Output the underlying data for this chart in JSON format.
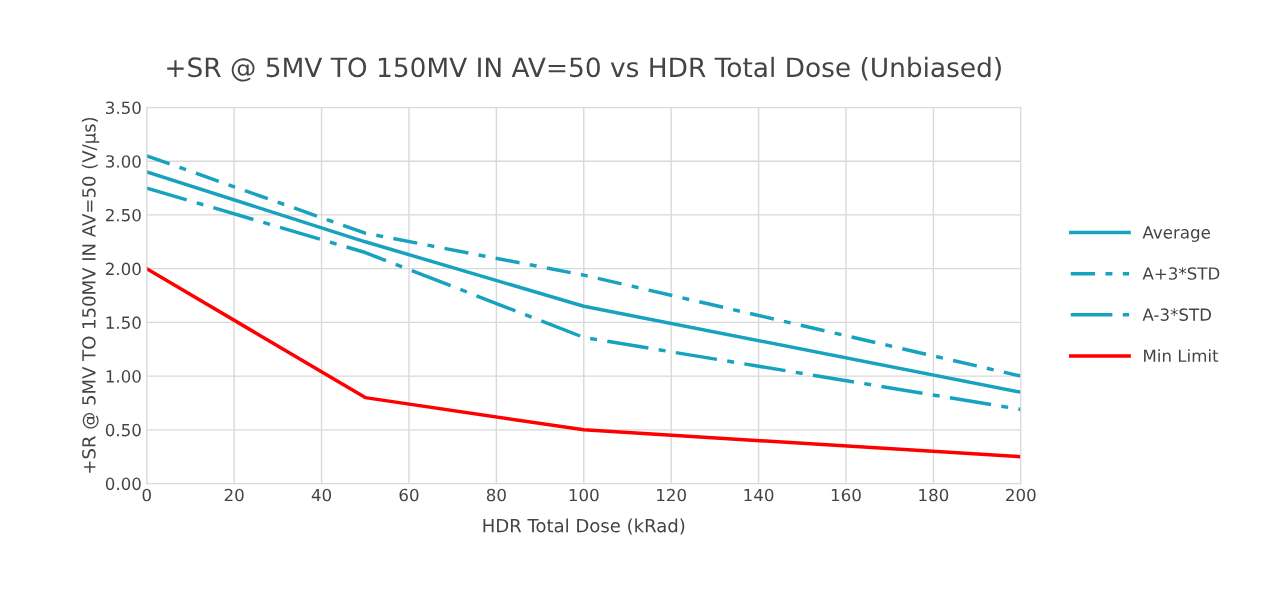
{
  "chart_data": {
    "type": "line",
    "title": "+SR @ 5MV TO 150MV IN AV=50 vs HDR Total Dose (Unbiased)",
    "xlabel": "HDR Total Dose (kRad)",
    "ylabel": "+SR @ 5MV TO 150MV IN AV=50 (V/µs)",
    "x": [
      0,
      50,
      100,
      200
    ],
    "series": [
      {
        "name": "Average",
        "color": "#17a2c0",
        "values": [
          2.9,
          2.25,
          1.65,
          0.85
        ],
        "line_style": "solid"
      },
      {
        "name": "A+3*STD",
        "color": "#17a2c0",
        "values": [
          3.05,
          2.33,
          1.94,
          1.0
        ],
        "line_style": "dashdot"
      },
      {
        "name": "A-3*STD",
        "color": "#17a2c0",
        "values": [
          2.75,
          2.15,
          1.36,
          0.69
        ],
        "line_style": "longdashdot"
      },
      {
        "name": "Min Limit",
        "color": "#ff0000",
        "values": [
          2.0,
          0.8,
          0.5,
          0.25
        ],
        "line_style": "solid"
      }
    ],
    "xlim": [
      0,
      200
    ],
    "xticks": [
      0,
      20,
      40,
      60,
      80,
      100,
      120,
      140,
      160,
      180,
      200
    ],
    "ylim": [
      0,
      3.5
    ],
    "yticks": [
      {
        "value": 0,
        "label": "0.00"
      },
      {
        "value": 0.5,
        "label": "0.50"
      },
      {
        "value": 1,
        "label": "1.00"
      },
      {
        "value": 1.5,
        "label": "1.50"
      },
      {
        "value": 2,
        "label": "2.00"
      },
      {
        "value": 2.5,
        "label": "2.50"
      },
      {
        "value": 3,
        "label": "3.00"
      },
      {
        "value": 3.5,
        "label": "3.50"
      }
    ],
    "grid": true,
    "legend": "right",
    "marker": "none"
  }
}
